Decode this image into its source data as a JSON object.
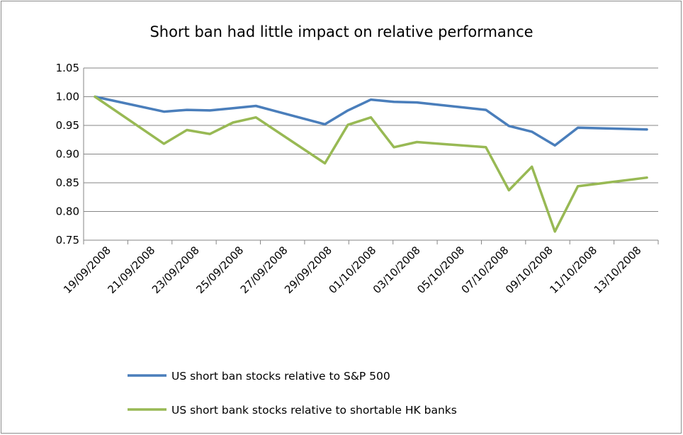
{
  "chart_data": {
    "type": "line",
    "title": "Short ban had little impact on relative performance",
    "xlabel": "",
    "ylabel": "",
    "ylim": [
      0.75,
      1.05
    ],
    "yticks": [
      "1.05",
      "1.00",
      "0.95",
      "0.90",
      "0.85",
      "0.80",
      "0.75"
    ],
    "xlim": [
      "2008-09-19",
      "2008-10-13"
    ],
    "x_tick_labels": [
      "19/09/2008",
      "21/09/2008",
      "23/09/2008",
      "25/09/2008",
      "27/09/2008",
      "29/09/2008",
      "01/10/2008",
      "03/10/2008",
      "05/10/2008",
      "07/10/2008",
      "09/10/2008",
      "11/10/2008",
      "13/10/2008"
    ],
    "x": [
      "2008-09-19",
      "2008-09-22",
      "2008-09-23",
      "2008-09-24",
      "2008-09-25",
      "2008-09-26",
      "2008-09-29",
      "2008-09-30",
      "2008-10-01",
      "2008-10-02",
      "2008-10-03",
      "2008-10-06",
      "2008-10-07",
      "2008-10-08",
      "2008-10-09",
      "2008-10-10",
      "2008-10-13"
    ],
    "series": [
      {
        "name": "US short ban stocks relative to S&P 500",
        "color": "#4a7ebb",
        "values": [
          1.0,
          0.974,
          0.977,
          0.976,
          0.98,
          0.984,
          0.952,
          0.976,
          0.995,
          0.991,
          0.99,
          0.977,
          0.949,
          0.939,
          0.915,
          0.946,
          0.943
        ]
      },
      {
        "name": "US short bank stocks relative to shortable HK banks",
        "color": "#98b954",
        "values": [
          1.0,
          0.918,
          0.942,
          0.935,
          0.955,
          0.964,
          0.884,
          0.951,
          0.964,
          0.912,
          0.921,
          0.912,
          0.837,
          0.878,
          0.765,
          0.844,
          0.859
        ]
      }
    ],
    "grid": "horizontal",
    "legend_position": "bottom"
  }
}
